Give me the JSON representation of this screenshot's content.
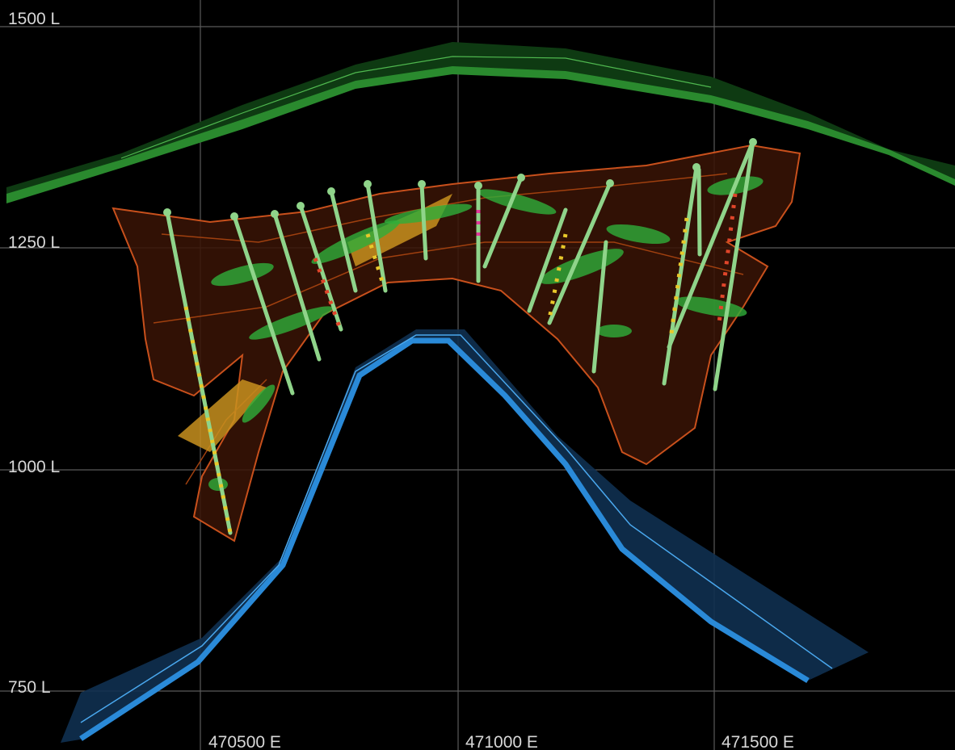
{
  "section_view": {
    "elevation_labels": [
      "1500 L",
      "1250 L",
      "1000 L",
      "750 L"
    ],
    "easting_labels": [
      "470500 E",
      "471000 E",
      "471500 E"
    ]
  }
}
